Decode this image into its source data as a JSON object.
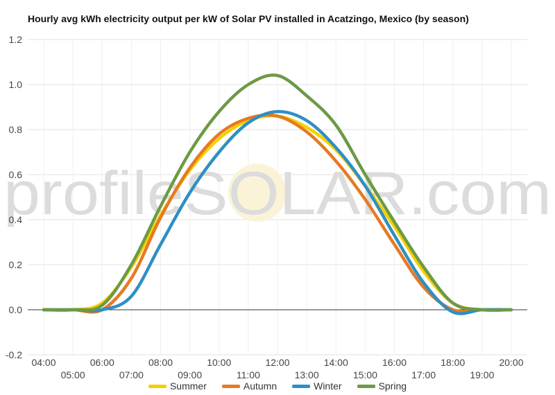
{
  "chart_data": {
    "type": "line",
    "title": "Hourly avg kWh electricity output per kW of Solar PV installed in Acatzingo, Mexico (by season)",
    "watermark": "profileSOLAR.com",
    "ylim": [
      -0.2,
      1.2
    ],
    "yticks": [
      "-0.2",
      "0.0",
      "0.2",
      "0.4",
      "0.6",
      "0.8",
      "1.0",
      "1.2"
    ],
    "grid": true,
    "legend_position": "bottom",
    "x": [
      "04:00",
      "05:00",
      "06:00",
      "07:00",
      "08:00",
      "09:00",
      "10:00",
      "11:00",
      "12:00",
      "13:00",
      "14:00",
      "15:00",
      "16:00",
      "17:00",
      "18:00",
      "19:00",
      "20:00"
    ],
    "series": [
      {
        "name": "Summer",
        "color": "#f5d000",
        "values": [
          0.0,
          0.0,
          0.03,
          0.19,
          0.42,
          0.62,
          0.76,
          0.84,
          0.86,
          0.81,
          0.71,
          0.55,
          0.37,
          0.17,
          0.03,
          0.0,
          0.0
        ]
      },
      {
        "name": "Autumn",
        "color": "#e67a22",
        "values": [
          0.0,
          0.0,
          0.0,
          0.14,
          0.41,
          0.63,
          0.78,
          0.85,
          0.86,
          0.79,
          0.66,
          0.49,
          0.29,
          0.1,
          0.0,
          0.0,
          0.0
        ]
      },
      {
        "name": "Winter",
        "color": "#2e8fc4",
        "values": [
          0.0,
          0.0,
          0.0,
          0.06,
          0.29,
          0.52,
          0.7,
          0.83,
          0.88,
          0.84,
          0.72,
          0.55,
          0.33,
          0.12,
          -0.01,
          0.0,
          0.0
        ]
      },
      {
        "name": "Spring",
        "color": "#6c9a45",
        "values": [
          0.0,
          0.0,
          0.02,
          0.2,
          0.46,
          0.7,
          0.88,
          1.0,
          1.04,
          0.95,
          0.82,
          0.6,
          0.39,
          0.19,
          0.03,
          0.0,
          0.0
        ]
      }
    ]
  }
}
